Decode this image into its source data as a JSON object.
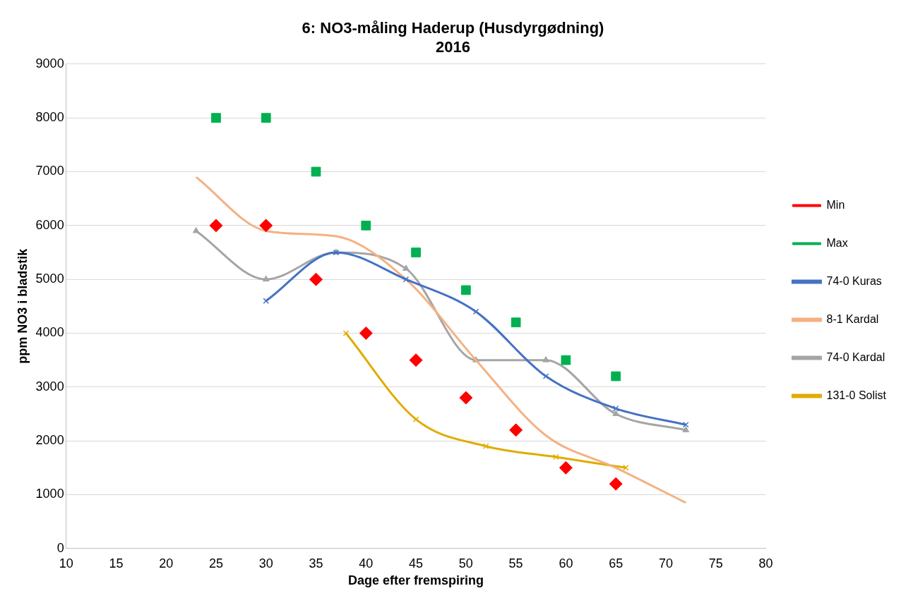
{
  "chart_data": {
    "type": "line",
    "title": [
      "6: NO3-måling Haderup (Husdyrgødning)",
      "2016"
    ],
    "xlabel": "Dage efter fremspiring",
    "ylabel": "ppm NO3 i bladstik",
    "xlim": [
      10,
      80
    ],
    "xticks": [
      10,
      15,
      20,
      25,
      30,
      35,
      40,
      45,
      50,
      55,
      60,
      65,
      70,
      75,
      80
    ],
    "ylim": [
      0,
      9000
    ],
    "yticks": [
      0,
      1000,
      2000,
      3000,
      4000,
      5000,
      6000,
      7000,
      8000,
      9000
    ],
    "grid": "y",
    "legend": "right",
    "series": [
      {
        "name": "Min",
        "type": "scatter",
        "marker": "diamond",
        "color": "#ff0000",
        "x": [
          25,
          30,
          35,
          40,
          45,
          50,
          55,
          60,
          65
        ],
        "values": [
          6000,
          6000,
          5000,
          4000,
          3500,
          2800,
          2200,
          1500,
          1200
        ]
      },
      {
        "name": "Max",
        "type": "scatter",
        "marker": "square",
        "color": "#00b050",
        "x": [
          25,
          30,
          35,
          40,
          45,
          50,
          55,
          60,
          65
        ],
        "values": [
          8000,
          8000,
          7000,
          6000,
          5500,
          4800,
          4200,
          3500,
          3200
        ]
      },
      {
        "name": "74-0 Kuras",
        "type": "line",
        "marker": "cross",
        "color": "#4472c4",
        "x": [
          30,
          37,
          44,
          51,
          58,
          65,
          72
        ],
        "values": [
          4600,
          5500,
          5000,
          4400,
          3200,
          2600,
          2300
        ]
      },
      {
        "name": "8-1 Kardal",
        "type": "line",
        "marker": "none",
        "color": "#f4b183",
        "x": [
          23,
          30,
          37,
          44,
          51,
          58,
          65,
          72
        ],
        "values": [
          6900,
          5900,
          5800,
          5000,
          3500,
          2100,
          1500,
          850
        ]
      },
      {
        "name": "74-0 Kardal",
        "type": "line",
        "marker": "triangle",
        "color": "#a5a5a5",
        "x": [
          23,
          30,
          37,
          44,
          51,
          58,
          65,
          72
        ],
        "values": [
          5900,
          5000,
          5500,
          5200,
          3500,
          3500,
          2500,
          2200
        ]
      },
      {
        "name": "131-0 Solist",
        "type": "line",
        "marker": "cross",
        "color": "#e0ac00",
        "x": [
          38,
          45,
          52,
          59,
          66
        ],
        "values": [
          4000,
          2400,
          1900,
          1700,
          1500
        ]
      }
    ]
  }
}
